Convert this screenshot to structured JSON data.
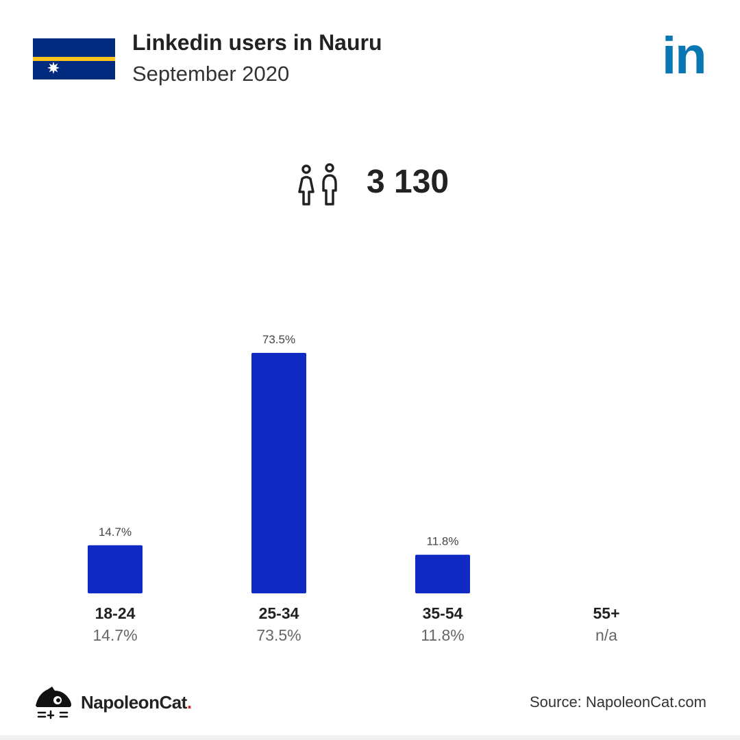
{
  "header": {
    "title": "Linkedin users in Nauru",
    "subtitle": "September 2020",
    "brand_logo_text": "in",
    "brand_color": "#0a77b5",
    "flag_icon": "nauru-flag-icon"
  },
  "summary": {
    "total_users": "3 130",
    "icon": "people-icon"
  },
  "chart_data": {
    "type": "bar",
    "categories": [
      "18-24",
      "25-34",
      "35-54",
      "55+"
    ],
    "values": [
      14.7,
      73.5,
      11.8,
      null
    ],
    "value_labels": [
      "14.7%",
      "73.5%",
      "11.8%",
      "n/a"
    ],
    "ylim": [
      0,
      73.5
    ],
    "bar_color": "#0f2bc4",
    "grid": false
  },
  "footer": {
    "brand_name": "NapoleonCat",
    "brand_dot": ".",
    "source": "Source: NapoleonCat.com",
    "logo_icon": "napoleoncat-logo-icon"
  },
  "colors": {
    "bar": "#0f2bc4",
    "linkedin": "#0a77b5",
    "flag_blue": "#002b7f",
    "flag_yellow": "#ffc61e",
    "accent_red": "#d0202a"
  }
}
